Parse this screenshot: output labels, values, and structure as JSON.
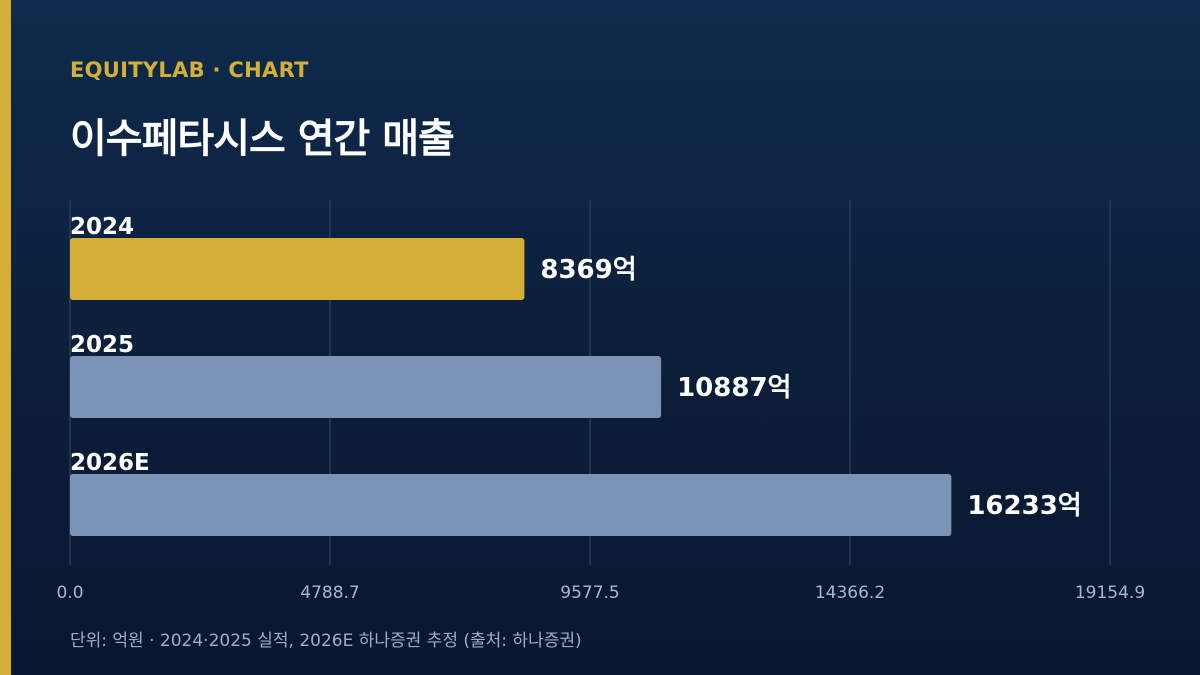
{
  "header": {
    "kicker": "EQUITYLAB · CHART",
    "title": "이수페타시스 연간 매출"
  },
  "footnote": "단위: 억원 · 2024·2025 실적, 2026E 하나증권 추정 (출처: 하나증권)",
  "colors": {
    "accent": "#d4af37",
    "bar_default": "#7b93b6",
    "bar_highlight": "#d4af37",
    "grid": "#34496a",
    "tick_text": "#a9b7cc"
  },
  "chart_data": {
    "type": "bar",
    "orientation": "horizontal",
    "categories": [
      "2024",
      "2025",
      "2026E"
    ],
    "values": [
      8369,
      10887,
      16233
    ],
    "value_labels": [
      "8369억",
      "10887억",
      "16233억"
    ],
    "highlight_index": 0,
    "xlim": [
      0,
      19154.9
    ],
    "xticks": [
      0,
      4788.7,
      9577.5,
      14366.2,
      19154.9
    ],
    "xtick_labels": [
      "0.0",
      "4788.7",
      "9577.5",
      "14366.2",
      "19154.9"
    ],
    "grid": true
  }
}
